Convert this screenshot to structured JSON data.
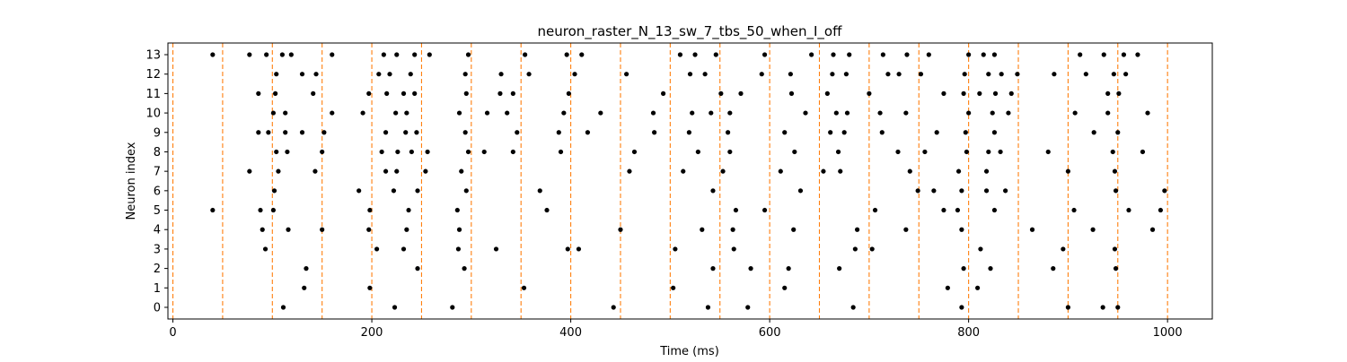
{
  "chart_data": {
    "type": "scatter",
    "title": "neuron_raster_N_13_sw_7_tbs_50_when_I_off",
    "xlabel": "Time (ms)",
    "ylabel": "Neuron index",
    "xlim": [
      -5,
      1045
    ],
    "ylim": [
      -0.6,
      13.6
    ],
    "x_ticks": [
      0,
      200,
      400,
      600,
      800,
      1000
    ],
    "x_tick_labels": [
      "0",
      "200",
      "400",
      "600",
      "800",
      "1000"
    ],
    "y_ticks": [
      0,
      1,
      2,
      3,
      4,
      5,
      6,
      7,
      8,
      9,
      10,
      11,
      12,
      13
    ],
    "y_tick_labels": [
      "0",
      "1",
      "2",
      "3",
      "4",
      "5",
      "6",
      "7",
      "8",
      "9",
      "10",
      "11",
      "12",
      "13"
    ],
    "marker_color": "#000000",
    "vline_color": "#ff7f0e",
    "vline_style": "dashed",
    "vlines": [
      0,
      50,
      100,
      150,
      200,
      250,
      300,
      350,
      400,
      450,
      500,
      550,
      600,
      650,
      700,
      750,
      800,
      850,
      900,
      950,
      1000
    ],
    "grid": false,
    "spikes": [
      {
        "neuron": 13,
        "times": [
          40,
          77,
          94,
          110,
          119,
          160,
          212,
          225,
          243,
          258,
          297,
          354,
          396,
          411,
          510,
          525,
          546,
          595,
          642,
          664,
          680,
          714,
          738,
          760,
          800,
          815,
          826,
          912,
          936,
          956,
          970
        ]
      },
      {
        "neuron": 12,
        "times": [
          104,
          130,
          144,
          207,
          218,
          239,
          294,
          330,
          358,
          404,
          456,
          520,
          535,
          592,
          621,
          663,
          677,
          719,
          730,
          752,
          796,
          820,
          833,
          849,
          886,
          918,
          946,
          958
        ]
      },
      {
        "neuron": 11,
        "times": [
          86,
          103,
          141,
          197,
          215,
          232,
          243,
          295,
          329,
          342,
          398,
          493,
          551,
          571,
          622,
          658,
          700,
          775,
          795,
          811,
          827,
          843,
          940,
          951
        ]
      },
      {
        "neuron": 10,
        "times": [
          101,
          113,
          160,
          191,
          224,
          235,
          288,
          316,
          336,
          393,
          430,
          483,
          522,
          541,
          560,
          636,
          667,
          678,
          711,
          737,
          800,
          824,
          840,
          907,
          940,
          980
        ]
      },
      {
        "neuron": 9,
        "times": [
          86,
          96,
          113,
          130,
          152,
          214,
          234,
          245,
          294,
          346,
          388,
          417,
          484,
          519,
          558,
          615,
          661,
          675,
          713,
          768,
          797,
          826,
          926,
          950
        ]
      },
      {
        "neuron": 8,
        "times": [
          104,
          115,
          150,
          210,
          226,
          240,
          256,
          297,
          313,
          342,
          390,
          464,
          528,
          560,
          625,
          669,
          729,
          756,
          798,
          820,
          832,
          880,
          945,
          975
        ]
      },
      {
        "neuron": 7,
        "times": [
          77,
          106,
          143,
          214,
          225,
          254,
          290,
          459,
          513,
          553,
          611,
          654,
          671,
          741,
          790,
          818,
          900,
          947
        ]
      },
      {
        "neuron": 6,
        "times": [
          102,
          187,
          222,
          246,
          295,
          369,
          543,
          631,
          749,
          765,
          793,
          818,
          837,
          948,
          997
        ]
      },
      {
        "neuron": 5,
        "times": [
          40,
          88,
          101,
          198,
          237,
          286,
          376,
          566,
          595,
          706,
          775,
          789,
          826,
          906,
          961,
          993
        ]
      },
      {
        "neuron": 4,
        "times": [
          90,
          116,
          150,
          197,
          235,
          288,
          450,
          532,
          563,
          624,
          688,
          737,
          793,
          864,
          925,
          985
        ]
      },
      {
        "neuron": 3,
        "times": [
          93,
          205,
          232,
          287,
          325,
          397,
          408,
          505,
          564,
          686,
          703,
          812,
          895,
          947
        ]
      },
      {
        "neuron": 2,
        "times": [
          134,
          246,
          293,
          543,
          581,
          619,
          670,
          795,
          822,
          885,
          948
        ]
      },
      {
        "neuron": 1,
        "times": [
          132,
          198,
          353,
          503,
          615,
          779,
          809
        ]
      },
      {
        "neuron": 0,
        "times": [
          111,
          223,
          281,
          443,
          538,
          578,
          684,
          793,
          900,
          935,
          950
        ]
      }
    ]
  }
}
